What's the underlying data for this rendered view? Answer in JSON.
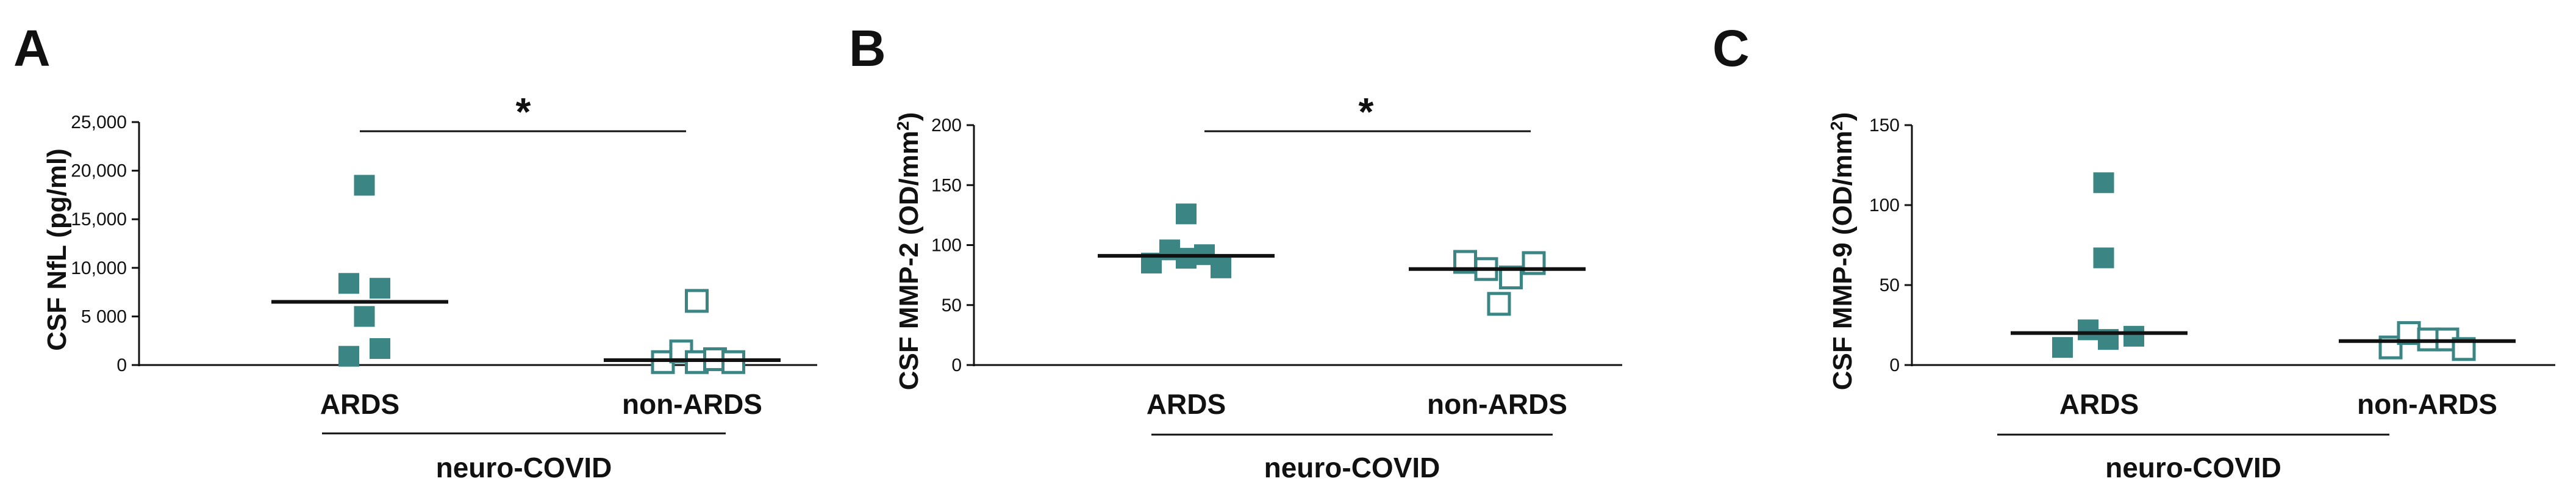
{
  "colors": {
    "series": "#3b8585",
    "axis": "#111111"
  },
  "chart_data": [
    {
      "type": "scatter",
      "panel": "A",
      "ylabel": "CSF NfL (pg/ml)",
      "ylim": [
        0,
        25000
      ],
      "yticks": [
        0,
        5000,
        10000,
        15000,
        20000,
        25000
      ],
      "ytick_labels": [
        "0",
        "5 000",
        "10,000",
        "15,000",
        "20,000",
        "25,000"
      ],
      "categories": [
        "ARDS",
        "non-ARDS"
      ],
      "group_label": "neuro-COVID",
      "significance": "*",
      "series": [
        {
          "category": "ARDS",
          "marker": "filled-square",
          "points": [
            {
              "x": 0.05,
              "y": 18500
            },
            {
              "x": -0.12,
              "y": 8400
            },
            {
              "x": 0.22,
              "y": 7900
            },
            {
              "x": 0.05,
              "y": 5000
            },
            {
              "x": -0.12,
              "y": 900
            },
            {
              "x": 0.22,
              "y": 1700
            }
          ],
          "median": 6500
        },
        {
          "category": "non-ARDS",
          "marker": "open-square",
          "points": [
            {
              "x": -0.32,
              "y": 300
            },
            {
              "x": -0.12,
              "y": 1400
            },
            {
              "x": 0.05,
              "y": 6600
            },
            {
              "x": 0.05,
              "y": 300
            },
            {
              "x": 0.25,
              "y": 600
            },
            {
              "x": 0.45,
              "y": 300
            }
          ],
          "median": 500
        }
      ]
    },
    {
      "type": "scatter",
      "panel": "B",
      "ylabel": "CSF MMP-2 (OD/mm2)",
      "ylim": [
        0,
        200
      ],
      "yticks": [
        0,
        50,
        100,
        150,
        200
      ],
      "ytick_labels": [
        "0",
        "50",
        "100",
        "150",
        "200"
      ],
      "categories": [
        "ARDS",
        "non-ARDS"
      ],
      "group_label": "neuro-COVID",
      "significance": "*",
      "series": [
        {
          "category": "ARDS",
          "marker": "filled-square",
          "points": [
            {
              "x": -0.38,
              "y": 85
            },
            {
              "x": -0.18,
              "y": 96
            },
            {
              "x": 0.0,
              "y": 89
            },
            {
              "x": 0.0,
              "y": 126
            },
            {
              "x": 0.2,
              "y": 92
            },
            {
              "x": 0.38,
              "y": 81
            }
          ],
          "median": 91
        },
        {
          "category": "non-ARDS",
          "marker": "open-square",
          "points": [
            {
              "x": -0.35,
              "y": 86
            },
            {
              "x": -0.12,
              "y": 80
            },
            {
              "x": 0.02,
              "y": 51
            },
            {
              "x": 0.15,
              "y": 73
            },
            {
              "x": 0.4,
              "y": 85
            }
          ],
          "median": 80
        }
      ]
    },
    {
      "type": "scatter",
      "panel": "C",
      "ylabel": "CSF MMP-9 (OD/mm2)",
      "ylim": [
        0,
        150
      ],
      "yticks": [
        0,
        50,
        100,
        150
      ],
      "ytick_labels": [
        "0",
        "50",
        "100",
        "150"
      ],
      "categories": [
        "ARDS",
        "non-ARDS"
      ],
      "group_label": "neuro-COVID",
      "significance": "",
      "series": [
        {
          "category": "ARDS",
          "marker": "filled-square",
          "points": [
            {
              "x": -0.4,
              "y": 11
            },
            {
              "x": -0.12,
              "y": 22
            },
            {
              "x": 0.05,
              "y": 114
            },
            {
              "x": 0.05,
              "y": 67
            },
            {
              "x": 0.1,
              "y": 16
            },
            {
              "x": 0.38,
              "y": 18
            }
          ],
          "median": 20
        },
        {
          "category": "non-ARDS",
          "marker": "open-square",
          "points": [
            {
              "x": -0.4,
              "y": 11
            },
            {
              "x": -0.2,
              "y": 20
            },
            {
              "x": 0.02,
              "y": 16
            },
            {
              "x": 0.22,
              "y": 16
            },
            {
              "x": 0.4,
              "y": 10
            }
          ],
          "median": 15
        }
      ]
    }
  ]
}
